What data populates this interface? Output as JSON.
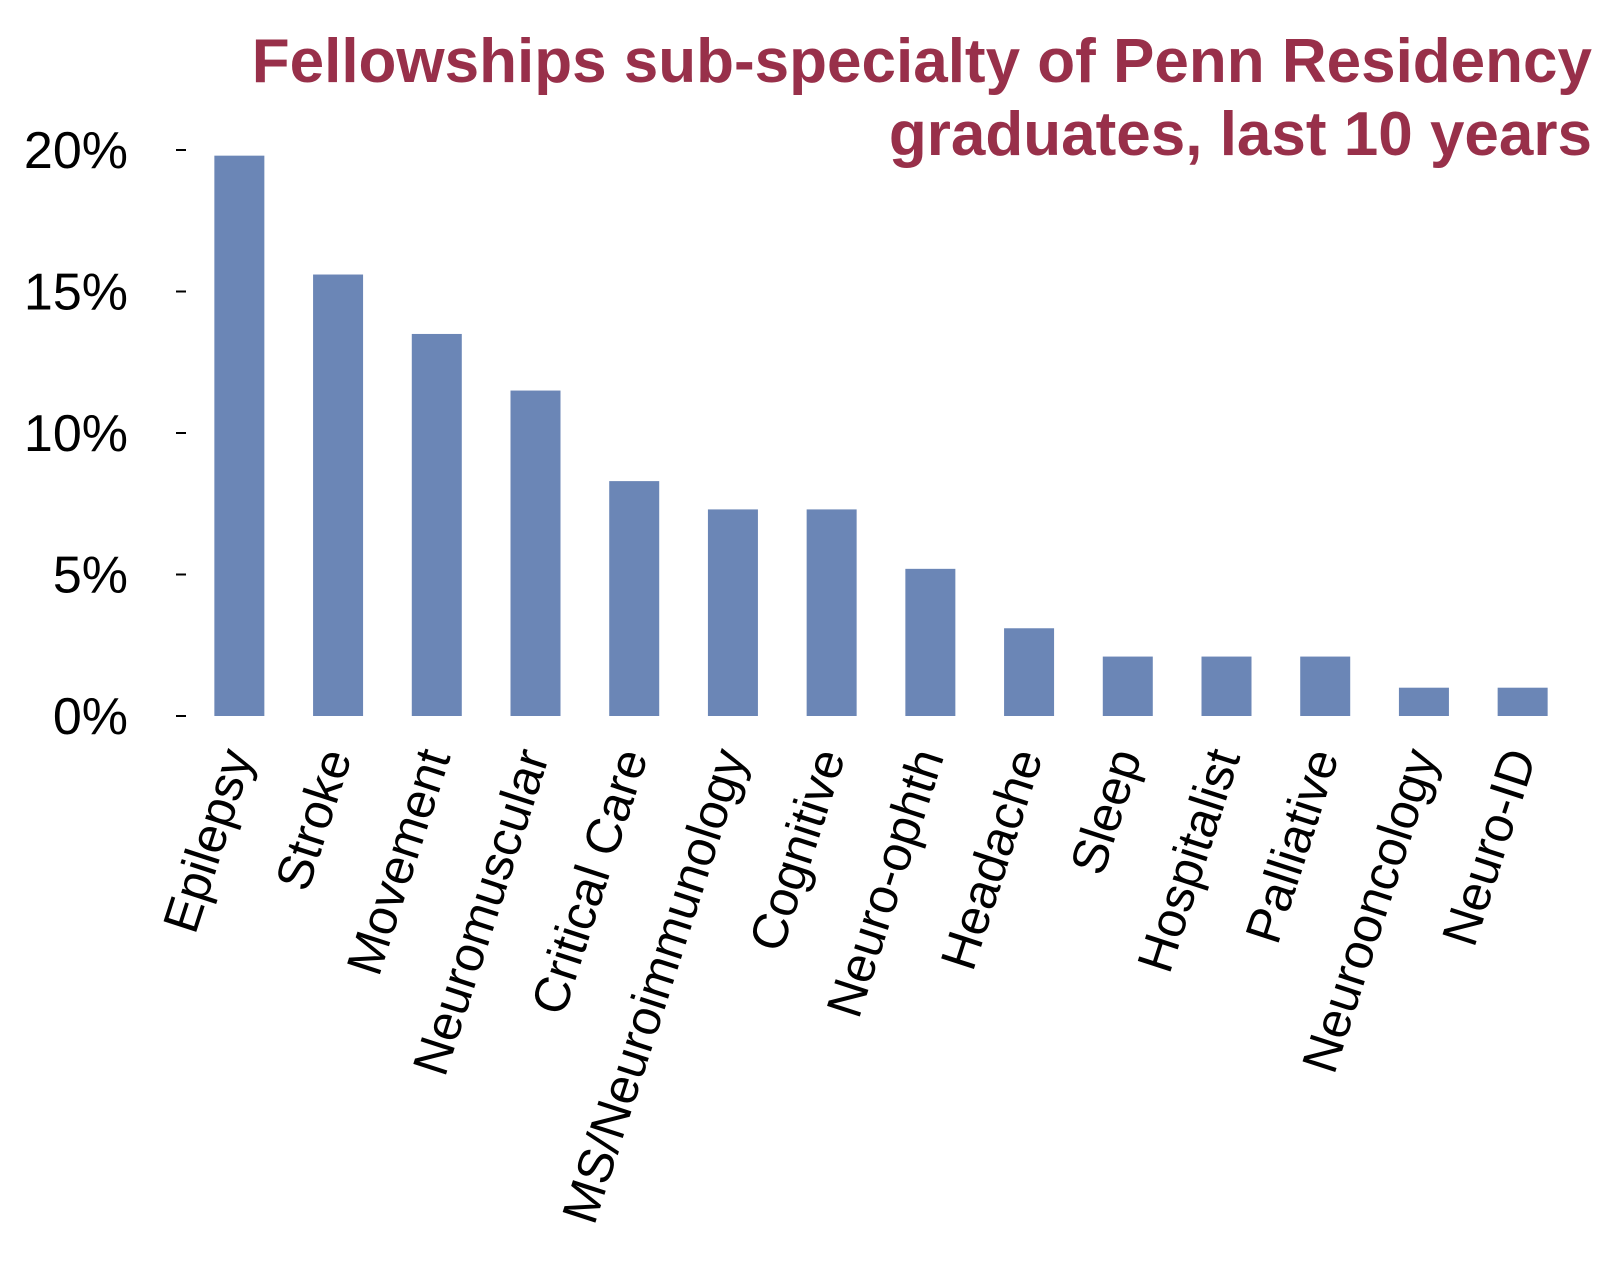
{
  "colors": {
    "title": "#98304a",
    "bar": "#6b86b6",
    "axis_tick": "#000000"
  },
  "chart_data": {
    "type": "bar",
    "title": "Fellowships sub-specialty of Penn Residency graduates, last 10 years",
    "title_lines": [
      "Fellowships sub-specialty of Penn Residency",
      "graduates, last 10 years"
    ],
    "xlabel": "",
    "ylabel": "",
    "categories": [
      "Epilepsy",
      "Stroke",
      "Movement",
      "Neuromuscular",
      "Critical Care",
      "MS/Neuroimmunology",
      "Cognitive",
      "Neuro-ophth",
      "Headache",
      "Sleep",
      "Hospitalist",
      "Palliative",
      "Neurooncology",
      "Neuro-ID"
    ],
    "values": [
      19.8,
      15.6,
      13.5,
      11.5,
      8.3,
      7.3,
      7.3,
      5.2,
      3.1,
      2.1,
      2.1,
      2.1,
      1.0,
      1.0
    ],
    "y_ticks": [
      {
        "value": 0,
        "label": "0%"
      },
      {
        "value": 5,
        "label": "5%"
      },
      {
        "value": 10,
        "label": "10%"
      },
      {
        "value": 15,
        "label": "15%"
      },
      {
        "value": 20,
        "label": "20%"
      }
    ],
    "ylim": [
      0,
      20
    ],
    "grid": false,
    "legend": "none"
  }
}
